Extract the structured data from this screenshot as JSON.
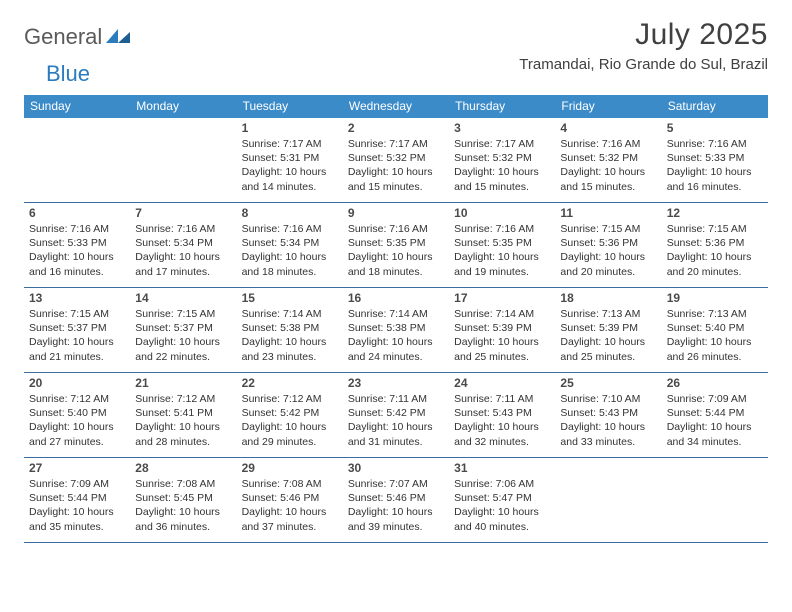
{
  "brand": {
    "word1": "General",
    "word2": "Blue",
    "mark_color": "#2b7bbf",
    "text_color": "#5a5a5a"
  },
  "title": "July 2025",
  "location": "Tramandai, Rio Grande do Sul, Brazil",
  "colors": {
    "header_bg": "#3b8bc9",
    "header_fg": "#ffffff",
    "row_border": "#3b6ea0",
    "text": "#333333",
    "daynum": "#4a4a4a",
    "page_bg": "#ffffff"
  },
  "days_of_week": [
    "Sunday",
    "Monday",
    "Tuesday",
    "Wednesday",
    "Thursday",
    "Friday",
    "Saturday"
  ],
  "weeks": [
    [
      null,
      null,
      {
        "n": "1",
        "sunrise": "7:17 AM",
        "sunset": "5:31 PM",
        "daylight": "10 hours and 14 minutes."
      },
      {
        "n": "2",
        "sunrise": "7:17 AM",
        "sunset": "5:32 PM",
        "daylight": "10 hours and 15 minutes."
      },
      {
        "n": "3",
        "sunrise": "7:17 AM",
        "sunset": "5:32 PM",
        "daylight": "10 hours and 15 minutes."
      },
      {
        "n": "4",
        "sunrise": "7:16 AM",
        "sunset": "5:32 PM",
        "daylight": "10 hours and 15 minutes."
      },
      {
        "n": "5",
        "sunrise": "7:16 AM",
        "sunset": "5:33 PM",
        "daylight": "10 hours and 16 minutes."
      }
    ],
    [
      {
        "n": "6",
        "sunrise": "7:16 AM",
        "sunset": "5:33 PM",
        "daylight": "10 hours and 16 minutes."
      },
      {
        "n": "7",
        "sunrise": "7:16 AM",
        "sunset": "5:34 PM",
        "daylight": "10 hours and 17 minutes."
      },
      {
        "n": "8",
        "sunrise": "7:16 AM",
        "sunset": "5:34 PM",
        "daylight": "10 hours and 18 minutes."
      },
      {
        "n": "9",
        "sunrise": "7:16 AM",
        "sunset": "5:35 PM",
        "daylight": "10 hours and 18 minutes."
      },
      {
        "n": "10",
        "sunrise": "7:16 AM",
        "sunset": "5:35 PM",
        "daylight": "10 hours and 19 minutes."
      },
      {
        "n": "11",
        "sunrise": "7:15 AM",
        "sunset": "5:36 PM",
        "daylight": "10 hours and 20 minutes."
      },
      {
        "n": "12",
        "sunrise": "7:15 AM",
        "sunset": "5:36 PM",
        "daylight": "10 hours and 20 minutes."
      }
    ],
    [
      {
        "n": "13",
        "sunrise": "7:15 AM",
        "sunset": "5:37 PM",
        "daylight": "10 hours and 21 minutes."
      },
      {
        "n": "14",
        "sunrise": "7:15 AM",
        "sunset": "5:37 PM",
        "daylight": "10 hours and 22 minutes."
      },
      {
        "n": "15",
        "sunrise": "7:14 AM",
        "sunset": "5:38 PM",
        "daylight": "10 hours and 23 minutes."
      },
      {
        "n": "16",
        "sunrise": "7:14 AM",
        "sunset": "5:38 PM",
        "daylight": "10 hours and 24 minutes."
      },
      {
        "n": "17",
        "sunrise": "7:14 AM",
        "sunset": "5:39 PM",
        "daylight": "10 hours and 25 minutes."
      },
      {
        "n": "18",
        "sunrise": "7:13 AM",
        "sunset": "5:39 PM",
        "daylight": "10 hours and 25 minutes."
      },
      {
        "n": "19",
        "sunrise": "7:13 AM",
        "sunset": "5:40 PM",
        "daylight": "10 hours and 26 minutes."
      }
    ],
    [
      {
        "n": "20",
        "sunrise": "7:12 AM",
        "sunset": "5:40 PM",
        "daylight": "10 hours and 27 minutes."
      },
      {
        "n": "21",
        "sunrise": "7:12 AM",
        "sunset": "5:41 PM",
        "daylight": "10 hours and 28 minutes."
      },
      {
        "n": "22",
        "sunrise": "7:12 AM",
        "sunset": "5:42 PM",
        "daylight": "10 hours and 29 minutes."
      },
      {
        "n": "23",
        "sunrise": "7:11 AM",
        "sunset": "5:42 PM",
        "daylight": "10 hours and 31 minutes."
      },
      {
        "n": "24",
        "sunrise": "7:11 AM",
        "sunset": "5:43 PM",
        "daylight": "10 hours and 32 minutes."
      },
      {
        "n": "25",
        "sunrise": "7:10 AM",
        "sunset": "5:43 PM",
        "daylight": "10 hours and 33 minutes."
      },
      {
        "n": "26",
        "sunrise": "7:09 AM",
        "sunset": "5:44 PM",
        "daylight": "10 hours and 34 minutes."
      }
    ],
    [
      {
        "n": "27",
        "sunrise": "7:09 AM",
        "sunset": "5:44 PM",
        "daylight": "10 hours and 35 minutes."
      },
      {
        "n": "28",
        "sunrise": "7:08 AM",
        "sunset": "5:45 PM",
        "daylight": "10 hours and 36 minutes."
      },
      {
        "n": "29",
        "sunrise": "7:08 AM",
        "sunset": "5:46 PM",
        "daylight": "10 hours and 37 minutes."
      },
      {
        "n": "30",
        "sunrise": "7:07 AM",
        "sunset": "5:46 PM",
        "daylight": "10 hours and 39 minutes."
      },
      {
        "n": "31",
        "sunrise": "7:06 AM",
        "sunset": "5:47 PM",
        "daylight": "10 hours and 40 minutes."
      },
      null,
      null
    ]
  ],
  "labels": {
    "sunrise_prefix": "Sunrise: ",
    "sunset_prefix": "Sunset: ",
    "daylight_prefix": "Daylight: "
  }
}
